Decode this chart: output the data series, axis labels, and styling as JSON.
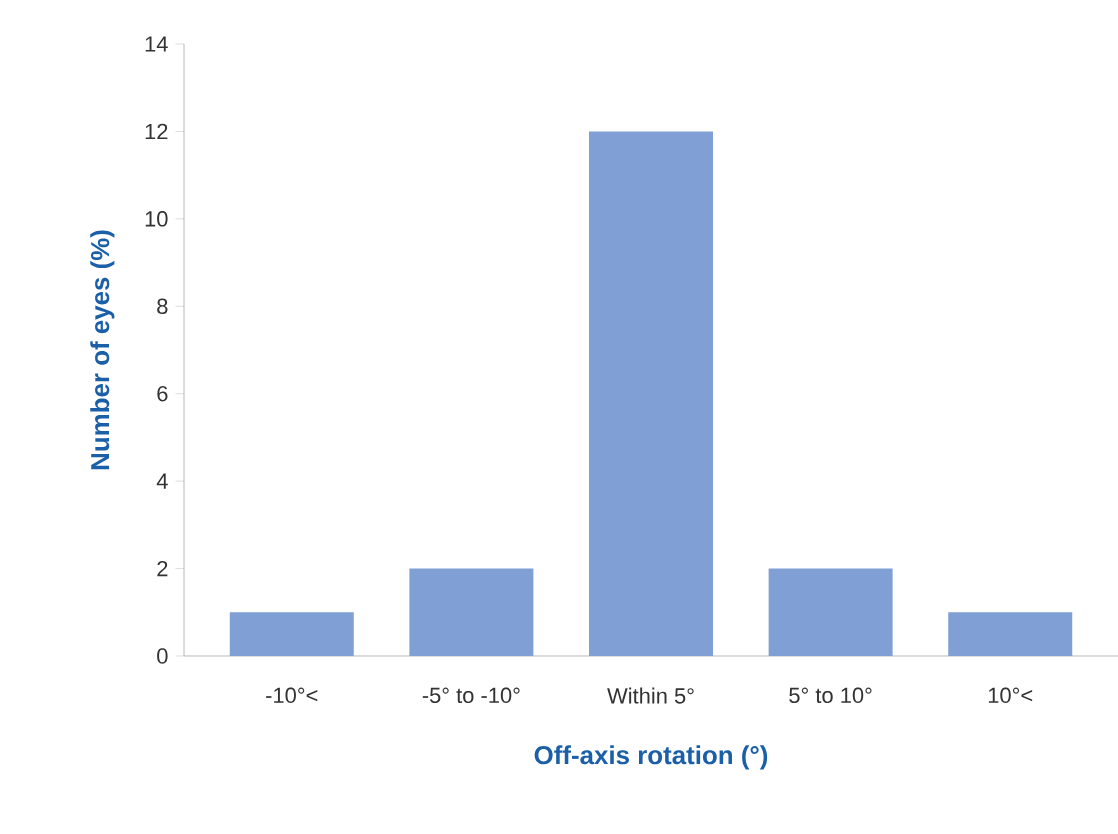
{
  "chart_data": {
    "type": "bar",
    "xlabel": "Off-axis rotation (°)",
    "ylabel": "Number of eyes (%)",
    "categories": [
      "-10°<",
      "-5° to -10°",
      "Within 5°",
      "5° to 10°",
      "10°<"
    ],
    "values": [
      1,
      2,
      12,
      2,
      1
    ],
    "color": "#7f9fd5",
    "ylim": [
      0,
      14
    ],
    "yticks": [
      0,
      2,
      4,
      6,
      8,
      10,
      12,
      14
    ]
  }
}
